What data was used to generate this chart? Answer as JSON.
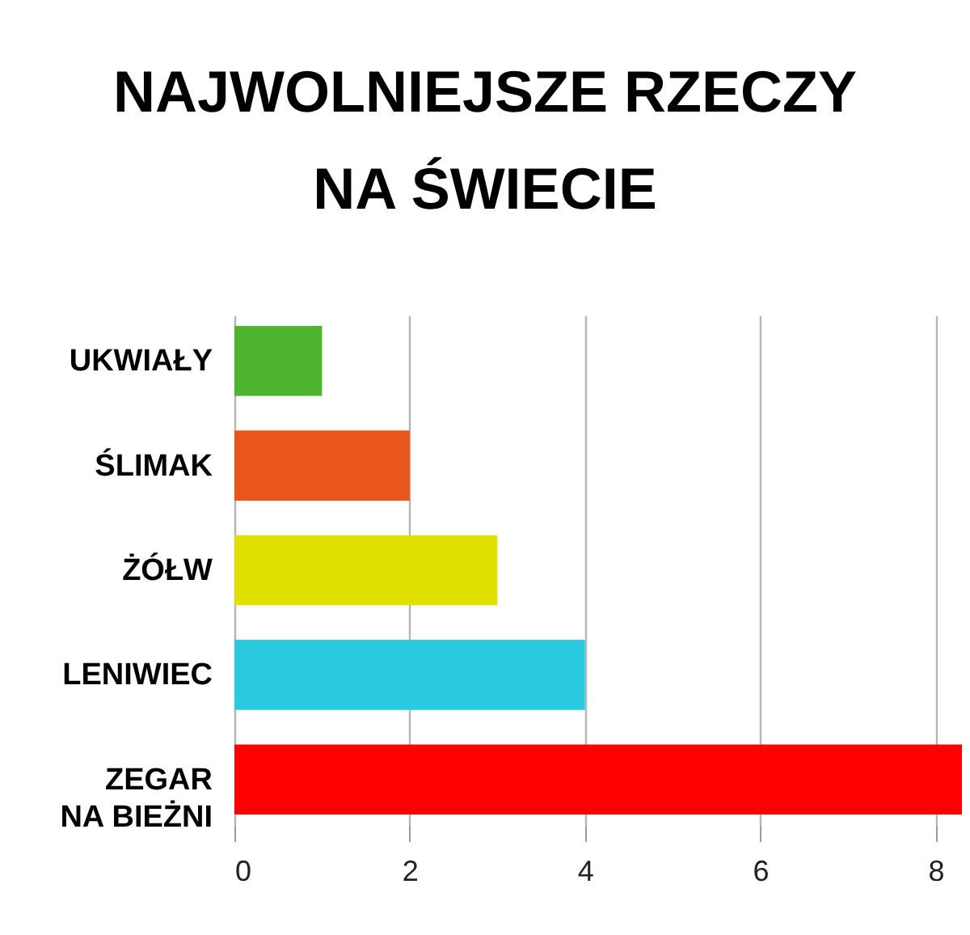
{
  "chart_data": {
    "type": "bar",
    "orientation": "horizontal",
    "title": "NAJWOLNIEJSZE RZECZY NA ŚWIECIE",
    "categories": [
      "UKWIAŁY",
      "ŚLIMAK",
      "ŻÓŁW",
      "LENIWIEC",
      "ZEGAR NA BIEŻNI"
    ],
    "values": [
      1,
      2,
      3,
      4,
      8.3
    ],
    "colors": [
      "#4db52e",
      "#e8561b",
      "#e0df00",
      "#2bc9e0",
      "#fe0000"
    ],
    "xlim": [
      0,
      8.3
    ],
    "xticks": [
      0,
      2,
      4,
      6,
      8
    ],
    "grid": "x"
  }
}
